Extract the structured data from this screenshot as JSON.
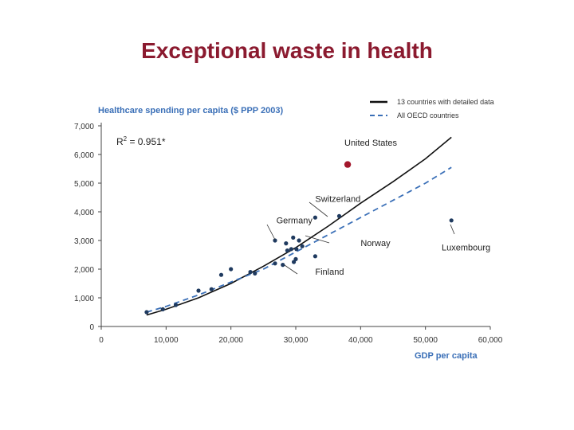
{
  "slide": {
    "title": "Exceptional waste in health"
  },
  "chart_data": {
    "type": "scatter",
    "title": "Healthcare spending per capita ($ PPP 2003)",
    "xlabel": "GDP per capita",
    "ylabel": "Healthcare spending per capita ($ PPP 2003)",
    "xlim": [
      0,
      60000
    ],
    "ylim": [
      0,
      7000
    ],
    "x_ticks": [
      {
        "value": 0,
        "label": "0"
      },
      {
        "value": 10000,
        "label": "10,000"
      },
      {
        "value": 20000,
        "label": "20,000"
      },
      {
        "value": 30000,
        "label": "30,000"
      },
      {
        "value": 40000,
        "label": "40,000"
      },
      {
        "value": 50000,
        "label": "50,000"
      },
      {
        "value": 60000,
        "label": "60,000"
      }
    ],
    "y_ticks": [
      {
        "value": 0,
        "label": "0"
      },
      {
        "value": 1000,
        "label": "1,000"
      },
      {
        "value": 2000,
        "label": "2,000"
      },
      {
        "value": 3000,
        "label": "3,000"
      },
      {
        "value": 4000,
        "label": "4,000"
      },
      {
        "value": 5000,
        "label": "5,000"
      },
      {
        "value": 6000,
        "label": "6,000"
      },
      {
        "value": 7000,
        "label": "7,000"
      }
    ],
    "r2_label": {
      "text": "R² = 0.951*"
    },
    "legend": [
      {
        "label": "13 countries with detailed data",
        "style": "solid",
        "color": "#111111"
      },
      {
        "label": "All OECD countries",
        "style": "dashed",
        "color": "#3a6fb7"
      }
    ],
    "series": [
      {
        "name": "13 countries with detailed data",
        "kind": "line",
        "style": "solid",
        "color": "#111111",
        "points": [
          [
            7000,
            400
          ],
          [
            10000,
            600
          ],
          [
            15000,
            1000
          ],
          [
            20000,
            1500
          ],
          [
            25000,
            2100
          ],
          [
            30000,
            2750
          ],
          [
            35000,
            3500
          ],
          [
            40000,
            4300
          ],
          [
            45000,
            5050
          ],
          [
            50000,
            5850
          ],
          [
            54000,
            6600
          ]
        ]
      },
      {
        "name": "All OECD countries",
        "kind": "line",
        "style": "dashed",
        "color": "#3a6fb7",
        "points": [
          [
            7000,
            500
          ],
          [
            10000,
            700
          ],
          [
            15000,
            1100
          ],
          [
            20000,
            1550
          ],
          [
            25000,
            2000
          ],
          [
            30000,
            2600
          ],
          [
            35000,
            3200
          ],
          [
            40000,
            3800
          ],
          [
            45000,
            4400
          ],
          [
            50000,
            5000
          ],
          [
            54000,
            5550
          ]
        ]
      },
      {
        "name": "Countries",
        "kind": "scatter",
        "color": "#1f3a5f",
        "points": [
          [
            7000,
            500
          ],
          [
            9500,
            600
          ],
          [
            11500,
            750
          ],
          [
            15000,
            1250
          ],
          [
            17000,
            1300
          ],
          [
            18500,
            1800
          ],
          [
            20000,
            2000
          ],
          [
            23000,
            1900
          ],
          [
            23700,
            1850
          ],
          [
            26800,
            2200
          ],
          [
            26800,
            3000
          ],
          [
            28000,
            2150
          ],
          [
            28500,
            2900
          ],
          [
            28700,
            2650
          ],
          [
            29300,
            2700
          ],
          [
            29600,
            3100
          ],
          [
            29700,
            2250
          ],
          [
            30000,
            2350
          ],
          [
            30100,
            2700
          ],
          [
            30500,
            3000
          ],
          [
            31000,
            2800
          ],
          [
            33000,
            2450
          ],
          [
            33000,
            3800
          ],
          [
            36700,
            3850
          ],
          [
            54000,
            3700
          ]
        ]
      },
      {
        "name": "United States",
        "kind": "highlight",
        "color": "#a3172c",
        "points": [
          [
            38000,
            5650
          ]
        ]
      }
    ],
    "annotations": [
      {
        "label": "United States",
        "x": 37500,
        "y": 6300
      },
      {
        "label": "Switzerland",
        "x": 33000,
        "y": 4350
      },
      {
        "label": "Germany",
        "x": 27000,
        "y": 3600
      },
      {
        "label": "Norway",
        "x": 40000,
        "y": 2800
      },
      {
        "label": "Luxembourg",
        "x": 52500,
        "y": 2650
      },
      {
        "label": "Finland",
        "x": 33000,
        "y": 1800
      }
    ]
  }
}
